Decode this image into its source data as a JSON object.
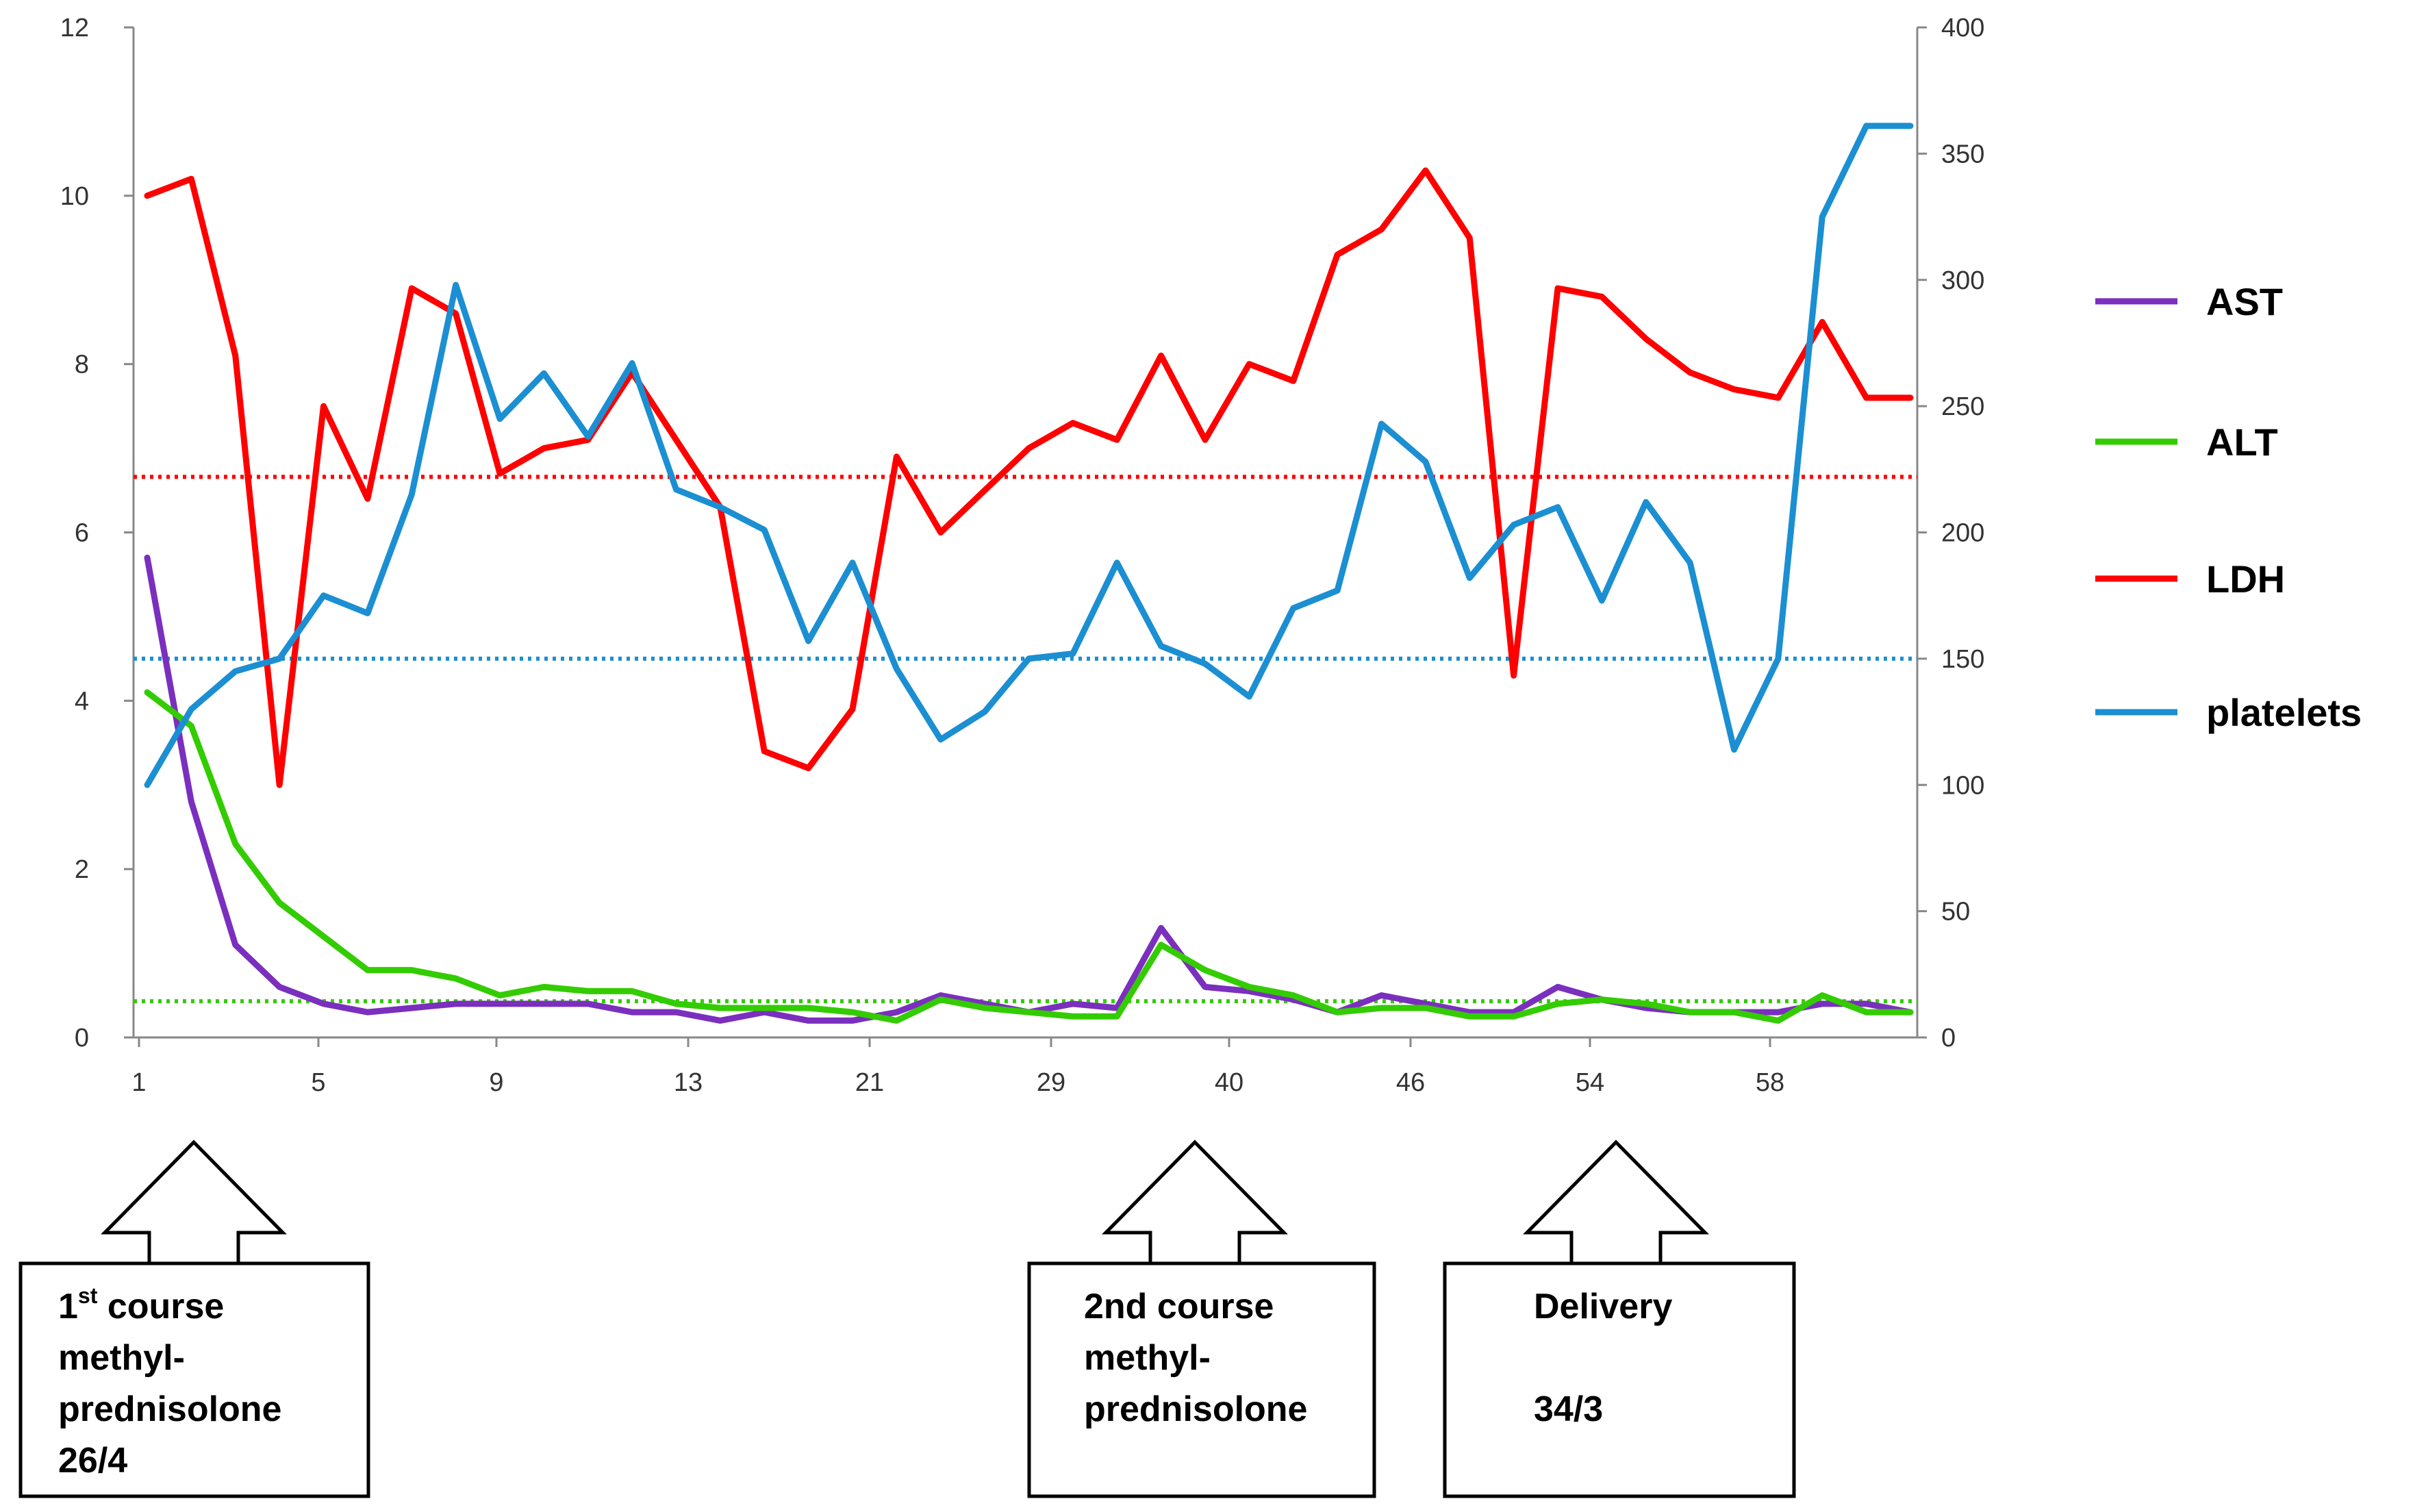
{
  "chart_data": {
    "type": "line",
    "title": "",
    "xlabel": "",
    "ylabel": "",
    "x": [
      1,
      2,
      3,
      4,
      5,
      6,
      7,
      8,
      9,
      10,
      11,
      12,
      13,
      14,
      15,
      16,
      17,
      18,
      19,
      20,
      21,
      22,
      23,
      24,
      25,
      26,
      27,
      28,
      29,
      30,
      31,
      32,
      33,
      34,
      35,
      36,
      37,
      38,
      39,
      40,
      41
    ],
    "x_tick_labels": [
      "1",
      "5",
      "9",
      "13",
      "21",
      "29",
      "40",
      "46",
      "54",
      "58"
    ],
    "y_left_ticks": [
      "0",
      "2",
      "4",
      "6",
      "8",
      "10",
      "12"
    ],
    "y_left_range": [
      0,
      12
    ],
    "y_right_ticks": [
      "0",
      "50",
      "100",
      "150",
      "200",
      "250",
      "300",
      "350",
      "400"
    ],
    "y_right_range": [
      0,
      400
    ],
    "grid": false,
    "legend_position": "right",
    "series": [
      {
        "name": "AST",
        "axis": "left",
        "color": "#7b2fbe",
        "values": [
          5.7,
          2.8,
          1.1,
          0.6,
          0.4,
          0.3,
          0.35,
          0.4,
          0.4,
          0.4,
          0.4,
          0.3,
          0.3,
          0.2,
          0.3,
          0.2,
          0.2,
          0.3,
          0.5,
          0.4,
          0.3,
          0.4,
          0.35,
          1.3,
          0.6,
          0.55,
          0.45,
          0.3,
          0.5,
          0.4,
          0.3,
          0.3,
          0.6,
          0.45,
          0.35,
          0.3,
          0.3,
          0.3,
          0.4,
          0.4,
          0.3
        ]
      },
      {
        "name": "ALT",
        "axis": "left",
        "color": "#33cc00",
        "values": [
          4.1,
          3.7,
          2.3,
          1.6,
          1.2,
          0.8,
          0.8,
          0.7,
          0.5,
          0.6,
          0.55,
          0.55,
          0.4,
          0.35,
          0.35,
          0.35,
          0.3,
          0.2,
          0.45,
          0.35,
          0.3,
          0.25,
          0.25,
          1.1,
          0.8,
          0.6,
          0.5,
          0.3,
          0.35,
          0.35,
          0.25,
          0.25,
          0.4,
          0.45,
          0.4,
          0.3,
          0.3,
          0.2,
          0.5,
          0.3,
          0.3
        ]
      },
      {
        "name": "LDH",
        "axis": "left",
        "color": "#ff0000",
        "values": [
          10.0,
          10.2,
          8.1,
          3.0,
          7.5,
          6.4,
          8.9,
          8.6,
          6.7,
          7.0,
          7.1,
          7.9,
          7.1,
          6.3,
          3.4,
          3.2,
          3.9,
          6.9,
          6.0,
          6.5,
          7.0,
          7.3,
          7.1,
          8.1,
          7.1,
          8.0,
          7.8,
          9.3,
          9.6,
          10.3,
          9.5,
          4.3,
          8.9,
          8.8,
          8.3,
          7.9,
          7.7,
          7.6,
          8.5,
          7.6,
          7.6
        ]
      },
      {
        "name": "platelets",
        "axis": "right",
        "color": "#1b8fd2",
        "values": [
          100,
          130,
          145,
          150,
          175,
          168,
          215,
          298,
          245,
          263,
          238,
          267,
          217,
          210,
          201,
          157,
          188,
          146,
          118,
          129,
          150,
          152,
          188,
          155,
          148,
          135,
          170,
          177,
          243,
          228,
          182,
          203,
          210,
          173,
          212,
          188,
          114,
          150,
          325,
          361,
          361
        ]
      }
    ],
    "reference_lines": [
      {
        "axis": "right",
        "value": 222,
        "color": "#ff0000"
      },
      {
        "axis": "left",
        "value": 4.5,
        "color": "#1b8fd2"
      },
      {
        "axis": "left",
        "value": 0.43,
        "color": "#33cc00"
      }
    ],
    "callouts": [
      {
        "lines": [
          "1st course",
          "methyl-",
          "prednisolone",
          "26/4"
        ],
        "superscript": "st",
        "x_index": 2
      },
      {
        "lines": [
          "2nd course",
          "methyl-",
          "prednisolone"
        ],
        "x_index": 24
      },
      {
        "lines": [
          "Delivery",
          "",
          "34/3"
        ],
        "x_index": 33
      }
    ]
  }
}
